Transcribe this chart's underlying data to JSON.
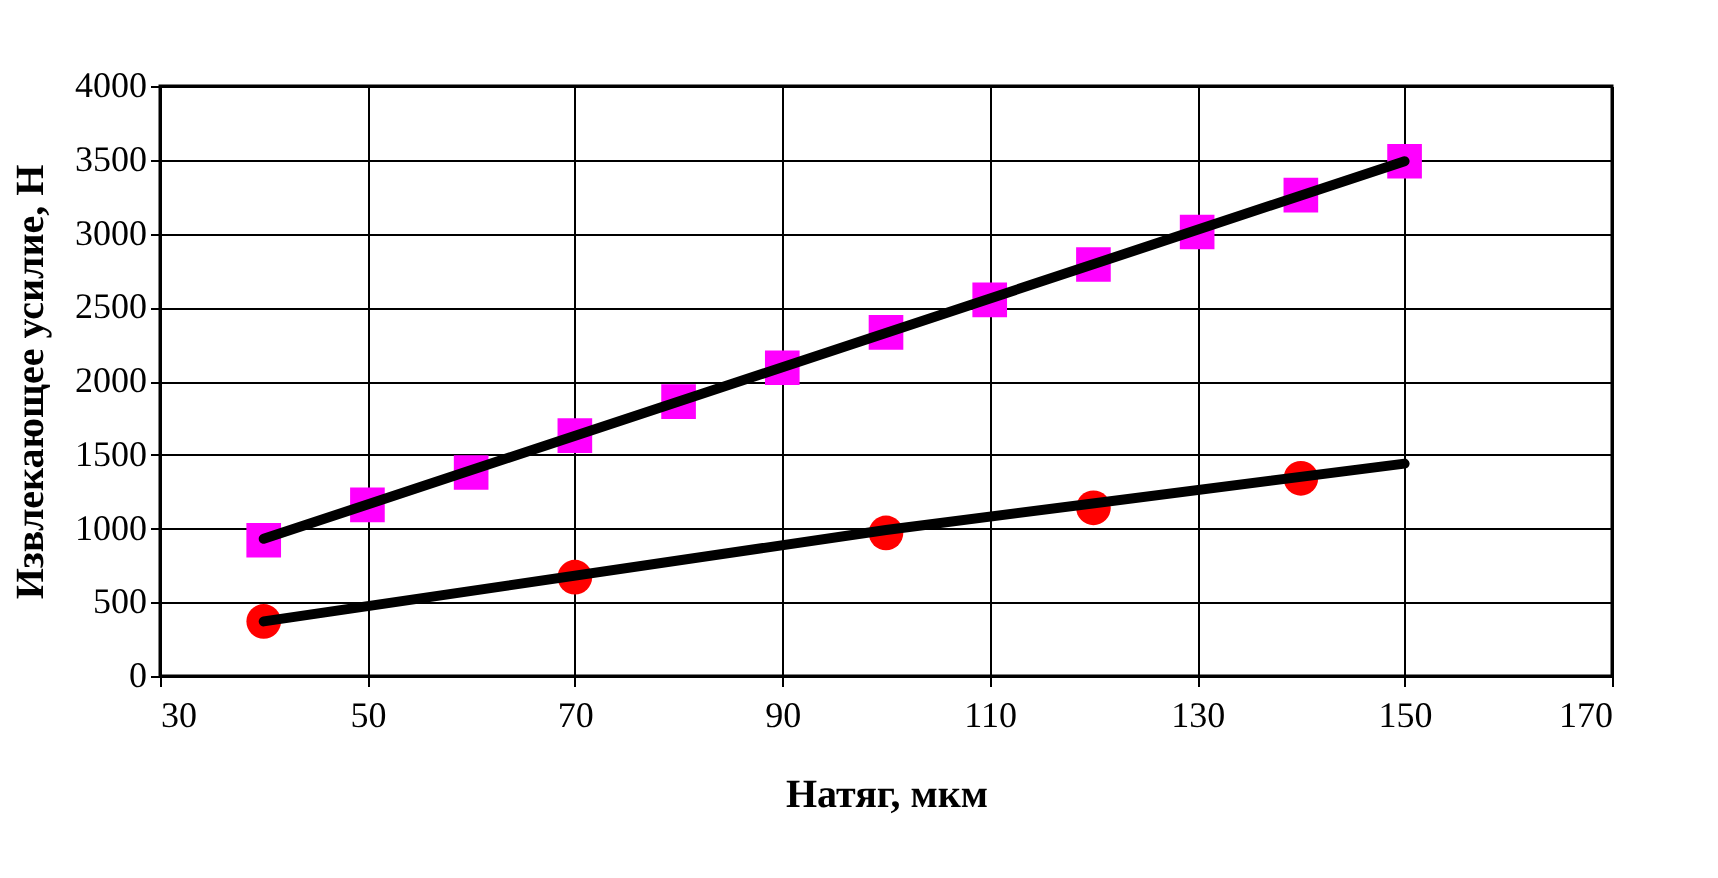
{
  "chart_data": {
    "type": "scatter",
    "xlabel": "Натяг, мкм",
    "ylabel": "Извлекающее усилие, Н",
    "xlim": [
      30,
      170
    ],
    "xticks": [
      30,
      50,
      70,
      90,
      110,
      130,
      150,
      170
    ],
    "ylim": [
      0,
      4000
    ],
    "yticks": [
      0,
      500,
      1000,
      1500,
      2000,
      2500,
      3000,
      3500,
      4000
    ],
    "grid": true,
    "series": [
      {
        "type": "scatter",
        "marker": "square",
        "color": "#ff00ff",
        "x": [
          40,
          50,
          60,
          70,
          80,
          90,
          100,
          110,
          120,
          130,
          140,
          150
        ],
        "values": [
          920,
          1160,
          1380,
          1630,
          1860,
          2090,
          2330,
          2550,
          2790,
          3010,
          3260,
          3490
        ]
      },
      {
        "type": "scatter",
        "marker": "circle",
        "color": "#ff0000",
        "x": [
          40,
          70,
          100,
          120,
          140
        ],
        "values": [
          370,
          670,
          970,
          1140,
          1340
        ]
      },
      {
        "type": "line",
        "marker": "none",
        "line_style": "solid",
        "color": "#000000",
        "x": [
          40,
          150
        ],
        "values": [
          930,
          3490
        ]
      },
      {
        "type": "line",
        "marker": "none",
        "line_style": "solid",
        "color": "#000000",
        "x": [
          40,
          100,
          150
        ],
        "values": [
          370,
          990,
          1440
        ]
      }
    ]
  }
}
